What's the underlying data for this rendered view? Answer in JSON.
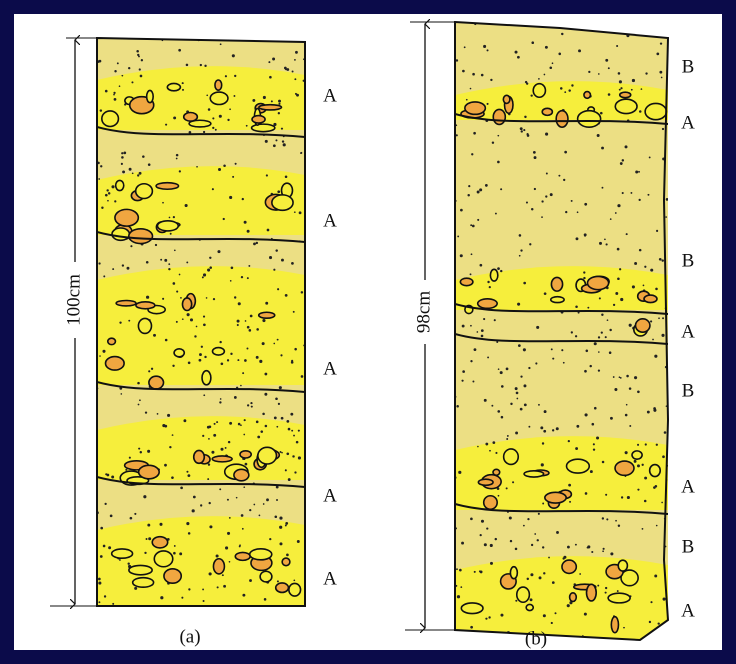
{
  "columns": [
    {
      "caption": "(a)",
      "height_label": "100cm",
      "layer_labels": [
        "A",
        "A",
        "A",
        "A",
        "A"
      ]
    },
    {
      "caption": "(b)",
      "height_label": "98cm",
      "layer_labels": [
        "B",
        "A",
        "B",
        "A",
        "B",
        "A",
        "B",
        "A"
      ]
    }
  ]
}
